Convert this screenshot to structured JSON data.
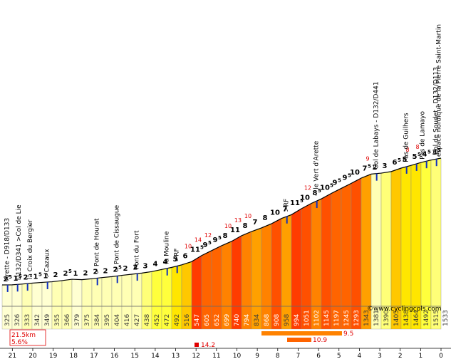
{
  "chart_data": {
    "type": "area",
    "title": "",
    "xlabel": "km to summit",
    "ylabel": "altitude (m)",
    "xlim": [
      21.5,
      0
    ],
    "total_distance_km": "21.5km",
    "avg_gradient": "5.6%",
    "credit": "©www.cyclingcols.com",
    "km_ticks": [
      "21",
      "20",
      "19",
      "18",
      "17",
      "16",
      "15",
      "14",
      "13",
      "12",
      "11",
      "10",
      "9",
      "8",
      "7",
      "6",
      "5",
      "4",
      "3",
      "2",
      "1",
      "0"
    ],
    "segments": [
      {
        "grade": "2",
        "sup": "5",
        "alt": "325",
        "color": "#ffffd2",
        "max": ""
      },
      {
        "grade": "1",
        "sup": "5",
        "alt": "326",
        "color": "#ffffd2",
        "max": ""
      },
      {
        "grade": "2",
        "sup": "",
        "alt": "333",
        "color": "#ffffb4",
        "max": ""
      },
      {
        "grade": "1",
        "sup": "5",
        "alt": "342",
        "color": "#ffffd2",
        "max": ""
      },
      {
        "grade": "1",
        "sup": "",
        "alt": "349",
        "color": "#ffffd2",
        "max": ""
      },
      {
        "grade": "2",
        "sup": "",
        "alt": "355",
        "color": "#ffffb4",
        "max": ""
      },
      {
        "grade": "2",
        "sup": "5",
        "alt": "366",
        "color": "#ffffb4",
        "max": ""
      },
      {
        "grade": "1",
        "sup": "",
        "alt": "379",
        "color": "#ffffd2",
        "max": ""
      },
      {
        "grade": "2",
        "sup": "",
        "alt": "375",
        "color": "#ffffb4",
        "max": ""
      },
      {
        "grade": "2",
        "sup": "",
        "alt": "384",
        "color": "#ffffb4",
        "max": ""
      },
      {
        "grade": "2",
        "sup": "",
        "alt": "395",
        "color": "#ffffb4",
        "max": ""
      },
      {
        "grade": "2",
        "sup": "5",
        "alt": "404",
        "color": "#ffffb4",
        "max": ""
      },
      {
        "grade": "2",
        "sup": "",
        "alt": "416",
        "color": "#ffffb4",
        "max": ""
      },
      {
        "grade": "2",
        "sup": "",
        "alt": "427",
        "color": "#ffffb4",
        "max": ""
      },
      {
        "grade": "3",
        "sup": "",
        "alt": "438",
        "color": "#ffff78",
        "max": ""
      },
      {
        "grade": "4",
        "sup": "",
        "alt": "452",
        "color": "#ffff3c",
        "max": ""
      },
      {
        "grade": "4",
        "sup": "",
        "alt": "472",
        "color": "#ffff3c",
        "max": ""
      },
      {
        "grade": "5",
        "sup": "",
        "alt": "492",
        "color": "#ffe600",
        "max": ""
      },
      {
        "grade": "6",
        "sup": "",
        "alt": "516",
        "color": "#ffc800",
        "max": "10"
      },
      {
        "grade": "11",
        "sup": "5",
        "alt": "547",
        "color": "#ff3c00",
        "max": "14"
      },
      {
        "grade": "9",
        "sup": "5",
        "alt": "605",
        "color": "#ff6400",
        "max": "12"
      },
      {
        "grade": "9",
        "sup": "5",
        "alt": "652",
        "color": "#ff6400",
        "max": ""
      },
      {
        "grade": "8",
        "sup": "",
        "alt": "699",
        "color": "#ff8200",
        "max": "10"
      },
      {
        "grade": "11",
        "sup": "",
        "alt": "740",
        "color": "#ff3c00",
        "max": "13"
      },
      {
        "grade": "8",
        "sup": "",
        "alt": "794",
        "color": "#ff8200",
        "max": "10"
      },
      {
        "grade": "7",
        "sup": "",
        "alt": "834",
        "color": "#ffa000",
        "max": ""
      },
      {
        "grade": "8",
        "sup": "",
        "alt": "868",
        "color": "#ff8200",
        "max": ""
      },
      {
        "grade": "10",
        "sup": "",
        "alt": "908",
        "color": "#ff5000",
        "max": ""
      },
      {
        "grade": "7",
        "sup": "",
        "alt": "958",
        "color": "#ffa000",
        "max": ""
      },
      {
        "grade": "11",
        "sup": "5",
        "alt": "994",
        "color": "#ff3c00",
        "max": ""
      },
      {
        "grade": "10",
        "sup": "",
        "alt": "1051",
        "color": "#ff5000",
        "max": "12"
      },
      {
        "grade": "8",
        "sup": "5",
        "alt": "1102",
        "color": "#ff8200",
        "max": ""
      },
      {
        "grade": "10",
        "sup": "5",
        "alt": "1145",
        "color": "#ff5000",
        "max": ""
      },
      {
        "grade": "9",
        "sup": "5",
        "alt": "1197",
        "color": "#ff6400",
        "max": ""
      },
      {
        "grade": "9",
        "sup": "5",
        "alt": "1245",
        "color": "#ff6400",
        "max": ""
      },
      {
        "grade": "10",
        "sup": "",
        "alt": "1293",
        "color": "#ff5000",
        "max": ""
      },
      {
        "grade": "7",
        "sup": "5",
        "alt": "1343",
        "color": "#ffa000",
        "max": "9"
      },
      {
        "grade": "2",
        "sup": "",
        "alt": "1381",
        "color": "#ffffb4",
        "max": ""
      },
      {
        "grade": "3",
        "sup": "",
        "alt": "1390",
        "color": "#ffff78",
        "max": ""
      },
      {
        "grade": "6",
        "sup": "5",
        "alt": "1405",
        "color": "#ffc800",
        "max": ""
      },
      {
        "grade": "5",
        "sup": "",
        "alt": "1438",
        "color": "#ffe600",
        "max": "8"
      },
      {
        "grade": "5",
        "sup": "5",
        "alt": "1464",
        "color": "#ffe600",
        "max": "8"
      },
      {
        "grade": "4",
        "sup": "5",
        "alt": "1492",
        "color": "#ffff3c",
        "max": ""
      },
      {
        "grade": "3",
        "sup": "5",
        "alt": "1515",
        "color": "#ffff78",
        "max": ""
      }
    ],
    "final_altitude": "1533",
    "places": [
      {
        "label": "Arette - D918/D133",
        "seg": 0
      },
      {
        "label": "D132/D341 >Col de Lie",
        "seg": 1
      },
      {
        "label": "la Croix du Bergier",
        "seg": 2
      },
      {
        "label": ">Cazaux",
        "seg": 4
      },
      {
        "label": "> Pont de Hourat",
        "seg": 9
      },
      {
        "label": "> Pont de Cissaugue",
        "seg": 11
      },
      {
        "label": "Pont du Fort",
        "seg": 13
      },
      {
        "label": "la Mouline",
        "seg": 16
      },
      {
        "label": ">RF",
        "seg": 17
      },
      {
        "label": ">RF",
        "seg": 28
      },
      {
        "label": "~ le Vert d'Arette",
        "seg": 31
      },
      {
        "label": "Col de Labays - D132/D441",
        "seg": 37
      },
      {
        "label": "Pas de Guilhers",
        "seg": 40
      },
      {
        "label": "Pas de Lamayo",
        "seg": 41
      },
      {
        "label": "espace nordique de la Pierre Saint-Martin",
        "seg": 42
      },
      {
        "label": "Col de Soudet - D132/D113",
        "seg": 43
      }
    ],
    "steepest": [
      {
        "label": "14.2"
      },
      {
        "label": "10.9"
      },
      {
        "label": "9.5"
      }
    ]
  }
}
